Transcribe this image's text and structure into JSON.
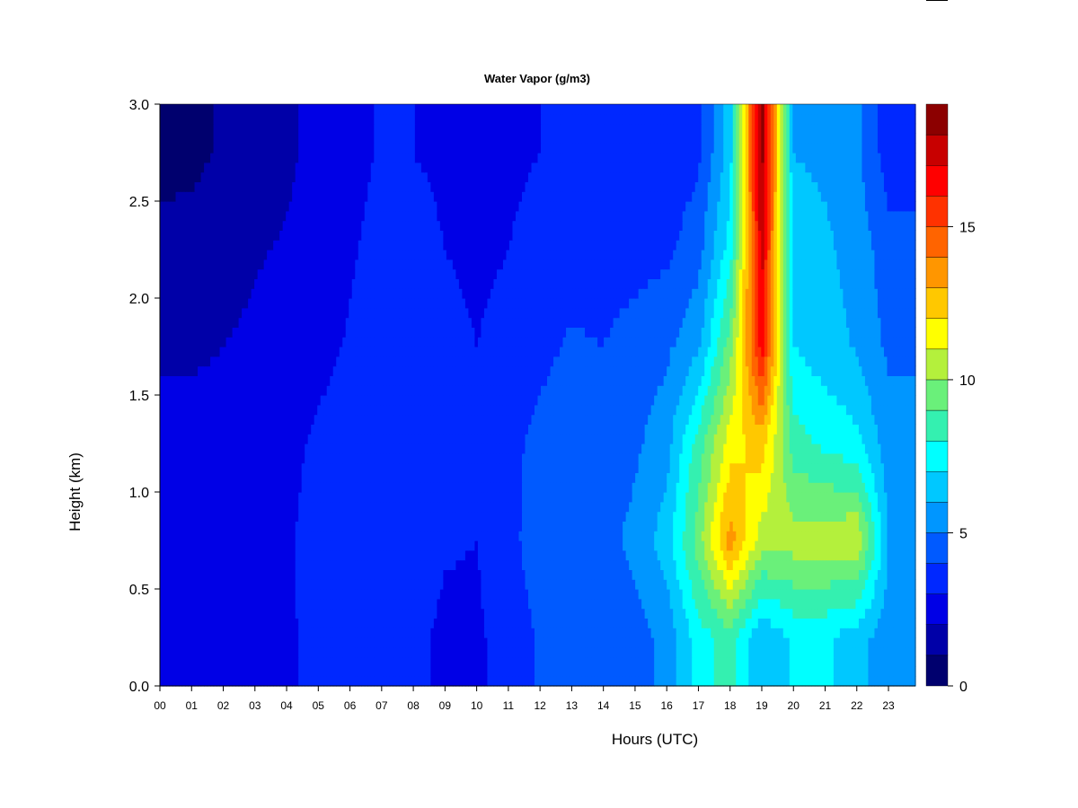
{
  "chart_data": {
    "type": "heatmap",
    "title": "Water Vapor (g/m3)",
    "xlabel": "Hours (UTC)",
    "ylabel": "Height (km)",
    "xlim": [
      0,
      23.85
    ],
    "ylim": [
      0,
      3.0
    ],
    "x_ticks": [
      "00",
      "01",
      "02",
      "03",
      "04",
      "05",
      "06",
      "07",
      "08",
      "09",
      "10",
      "11",
      "12",
      "13",
      "14",
      "15",
      "16",
      "17",
      "18",
      "19",
      "20",
      "21",
      "22",
      "23"
    ],
    "y_ticks": [
      "0.0",
      "0.5",
      "1.0",
      "1.5",
      "2.0",
      "2.5",
      "3.0"
    ],
    "colorbar": {
      "range": [
        0,
        19
      ],
      "ticks": [
        "0",
        "5",
        "10",
        "15"
      ],
      "levels": [
        {
          "from": 0,
          "to": 1,
          "color": "#00006e"
        },
        {
          "from": 1,
          "to": 2,
          "color": "#0000a8"
        },
        {
          "from": 2,
          "to": 3,
          "color": "#0000e6"
        },
        {
          "from": 3,
          "to": 4,
          "color": "#0028ff"
        },
        {
          "from": 4,
          "to": 5,
          "color": "#005aff"
        },
        {
          "from": 5,
          "to": 6,
          "color": "#0096ff"
        },
        {
          "from": 6,
          "to": 7,
          "color": "#00c8ff"
        },
        {
          "from": 7,
          "to": 8,
          "color": "#00ffff"
        },
        {
          "from": 8,
          "to": 9,
          "color": "#34f0b0"
        },
        {
          "from": 9,
          "to": 10,
          "color": "#6af07a"
        },
        {
          "from": 10,
          "to": 11,
          "color": "#b4f03c"
        },
        {
          "from": 11,
          "to": 12,
          "color": "#ffff00"
        },
        {
          "from": 12,
          "to": 13,
          "color": "#ffc800"
        },
        {
          "from": 13,
          "to": 14,
          "color": "#ff9600"
        },
        {
          "from": 14,
          "to": 15,
          "color": "#ff6400"
        },
        {
          "from": 15,
          "to": 16,
          "color": "#ff3200"
        },
        {
          "from": 16,
          "to": 17,
          "color": "#ff0000"
        },
        {
          "from": 17,
          "to": 18,
          "color": "#c80000"
        },
        {
          "from": 18,
          "to": 19,
          "color": "#8c0000"
        }
      ]
    },
    "hours": [
      0,
      1,
      2,
      3,
      4,
      5,
      6,
      7,
      8,
      9,
      10,
      11,
      12,
      13,
      14,
      15,
      16,
      17,
      18,
      19,
      20,
      21,
      22,
      23
    ],
    "heights_km": [
      0.25,
      0.75,
      1.25,
      1.75,
      2.25,
      2.75
    ],
    "values_g_m3": [
      [
        2.6,
        2.6,
        2.7,
        2.8,
        2.8,
        3.4,
        3.5,
        3.5,
        3.2,
        2.8,
        2.8,
        3.5,
        4.1,
        4.1,
        4.0,
        4.6,
        5.3,
        7.5,
        8.5,
        6.0,
        7.2,
        7.2,
        6.4,
        5.4
      ],
      [
        2.6,
        2.6,
        2.6,
        2.6,
        2.8,
        3.5,
        3.5,
        3.8,
        3.6,
        3.1,
        3.0,
        3.7,
        4.5,
        4.7,
        4.6,
        5.3,
        6.5,
        9.5,
        13.5,
        10.5,
        10.5,
        10.5,
        11.0,
        6.0
      ],
      [
        2.4,
        2.5,
        2.5,
        2.6,
        2.7,
        3.2,
        3.4,
        3.8,
        3.9,
        3.6,
        3.5,
        3.8,
        4.2,
        4.5,
        4.4,
        4.8,
        5.6,
        8.5,
        11.5,
        12.5,
        8.5,
        7.8,
        7.3,
        5.4
      ],
      [
        1.8,
        1.8,
        2.0,
        2.2,
        2.5,
        2.7,
        3.1,
        3.6,
        3.6,
        3.3,
        3.0,
        3.3,
        3.8,
        4.1,
        4.0,
        4.4,
        4.8,
        5.8,
        9.5,
        16.5,
        7.0,
        6.4,
        5.9,
        4.8
      ],
      [
        1.3,
        1.3,
        1.6,
        1.9,
        2.1,
        2.5,
        2.9,
        3.3,
        3.2,
        3.0,
        2.8,
        3.0,
        3.4,
        3.7,
        3.6,
        3.6,
        3.8,
        4.6,
        7.5,
        17.5,
        6.5,
        6.2,
        5.6,
        4.4
      ],
      [
        0.7,
        0.8,
        1.1,
        1.5,
        1.8,
        2.3,
        2.7,
        3.1,
        3.0,
        2.9,
        2.6,
        2.8,
        3.0,
        3.2,
        3.3,
        3.2,
        3.3,
        3.8,
        6.5,
        18.5,
        6.0,
        5.8,
        5.2,
        3.5
      ]
    ]
  }
}
